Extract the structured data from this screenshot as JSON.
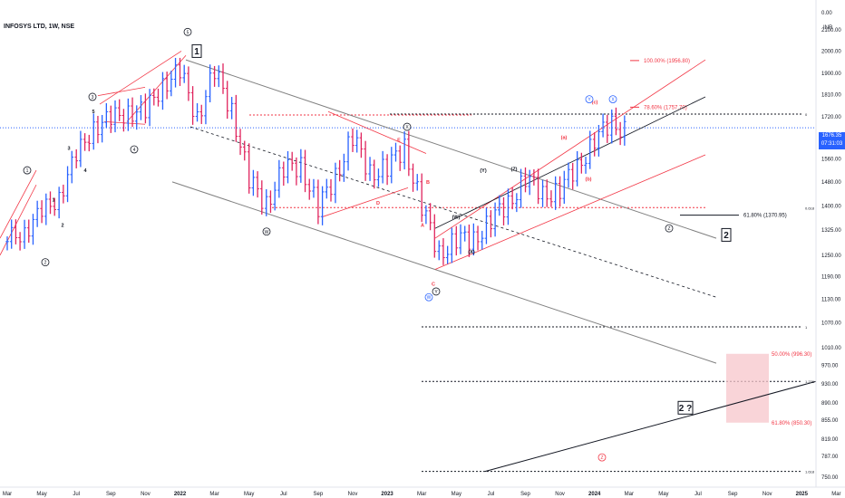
{
  "header": {
    "symbol_title": "INFOSYS LTD, 1W, NSE",
    "currency": "INR"
  },
  "price_badge": {
    "price": "1676.35",
    "countdown": "07:31:03"
  },
  "colors": {
    "up": "#2962ff",
    "down": "#e0245e",
    "channel": "#808080",
    "fib_red": "#f23645",
    "trend": "#131722",
    "box_fill": "#f7c5cb"
  },
  "chart_data": {
    "type": "ohlc-bar",
    "y_axis": {
      "ticks": [
        2100,
        2000,
        1900,
        1810,
        1720,
        1640,
        1560,
        1480,
        1400,
        1325,
        1250,
        1190,
        1130,
        1070,
        1010,
        970,
        930,
        890,
        855,
        819,
        787,
        750
      ],
      "ticks_label": [
        "2100.00",
        "2000.00",
        "1900.00",
        "1810.00",
        "1720.00",
        "1640.00",
        "1560.00",
        "1480.00",
        "1400.00",
        "1325.00",
        "1250.00",
        "1190.00",
        "1130.00",
        "1070.00",
        "1010.00",
        "970.00",
        "930.00",
        "890.00",
        "855.00",
        "819.00",
        "787.00",
        "750.00"
      ],
      "top_label": "0.00",
      "scale": "log"
    },
    "x_axis": {
      "labels": [
        "Mar",
        "May",
        "Jul",
        "Sep",
        "Nov",
        "2022",
        "Mar",
        "May",
        "Jul",
        "Sep",
        "Nov",
        "2023",
        "Mar",
        "May",
        "Jul",
        "Sep",
        "Nov",
        "2024",
        "Mar",
        "May",
        "Jul",
        "Sep",
        "Nov",
        "2025",
        "Mar"
      ],
      "bold": [
        "2022",
        "2023",
        "2024",
        "2025"
      ]
    },
    "series_from": "2021-03",
    "weekly_close_approx": [
      [
        "2021-03",
        1290
      ],
      [
        "2021-04",
        1330
      ],
      [
        "2021-05",
        1370
      ],
      [
        "2021-06",
        1440
      ],
      [
        "2021-07",
        1560
      ],
      [
        "2021-08",
        1690
      ],
      [
        "2021-09",
        1700
      ],
      [
        "2021-10",
        1750
      ],
      [
        "2021-11",
        1730
      ],
      [
        "2021-12",
        1860
      ],
      [
        "2022-01",
        1900
      ],
      [
        "2022-02",
        1720
      ],
      [
        "2022-03",
        1900
      ],
      [
        "2022-04",
        1750
      ],
      [
        "2022-05",
        1480
      ],
      [
        "2022-06",
        1410
      ],
      [
        "2022-07",
        1520
      ],
      [
        "2022-08",
        1540
      ],
      [
        "2022-09",
        1390
      ],
      [
        "2022-10",
        1500
      ],
      [
        "2022-11",
        1640
      ],
      [
        "2022-12",
        1510
      ],
      [
        "2023-01",
        1530
      ],
      [
        "2023-02",
        1600
      ],
      [
        "2023-03",
        1400
      ],
      [
        "2023-04",
        1250
      ],
      [
        "2023-05",
        1300
      ],
      [
        "2023-06",
        1290
      ],
      [
        "2023-07",
        1360
      ],
      [
        "2023-08",
        1400
      ],
      [
        "2023-09",
        1500
      ],
      [
        "2023-10",
        1430
      ],
      [
        "2023-11",
        1460
      ],
      [
        "2023-12",
        1520
      ],
      [
        "2024-01",
        1640
      ],
      [
        "2024-02",
        1680
      ]
    ],
    "last_price": 1676.35,
    "fib_levels": [
      {
        "label": "100.00% (1956.80)",
        "value": 1956.8
      },
      {
        "label": "78.60% (1757.70)",
        "value": 1757.7
      },
      {
        "label": "61.80% (1370.95)",
        "value": 1370.95
      },
      {
        "label": "50.00% (996.30)",
        "value": 996.3
      },
      {
        "label": "61.80% (850.30)",
        "value": 850.3
      }
    ],
    "level_marks": [
      {
        "label": "0",
        "value": 1730
      },
      {
        "label": "0.618",
        "value": 1395
      },
      {
        "label": "1",
        "value": 1060
      },
      {
        "label": "1.236",
        "value": 935
      },
      {
        "label": "1.618",
        "value": 760
      }
    ],
    "annotations": [
      {
        "text": "1",
        "kind": "circle"
      },
      {
        "text": "2",
        "kind": "circle"
      },
      {
        "text": "3",
        "kind": "circle"
      },
      {
        "text": "4",
        "kind": "circle"
      },
      {
        "text": "5",
        "kind": "circle"
      },
      {
        "text": "1",
        "kind": "box"
      },
      {
        "text": "2",
        "kind": "box"
      },
      {
        "text": "2 ?",
        "kind": "box"
      },
      {
        "text": "W",
        "kind": "circle"
      },
      {
        "text": "X",
        "kind": "circle"
      },
      {
        "text": "Y",
        "kind": "circle"
      },
      {
        "text": "Z",
        "kind": "circle"
      },
      {
        "text": "A"
      },
      {
        "text": "B"
      },
      {
        "text": "C"
      },
      {
        "text": "D"
      },
      {
        "text": "E"
      },
      {
        "text": "(W)"
      },
      {
        "text": "(X)"
      },
      {
        "text": "(Y)"
      },
      {
        "text": "(Z)"
      },
      {
        "text": "(a)"
      },
      {
        "text": "(b)"
      },
      {
        "text": "(c)"
      },
      {
        "text": "3"
      },
      {
        "text": "4"
      },
      {
        "text": "5"
      },
      {
        "text": "1"
      },
      {
        "text": "2"
      },
      {
        "text": "W",
        "kind": "blue-circle"
      },
      {
        "text": "X",
        "kind": "blue-circle"
      },
      {
        "text": "Y",
        "kind": "blue-circle"
      },
      {
        "text": "Z",
        "kind": "pink-circle"
      }
    ]
  }
}
